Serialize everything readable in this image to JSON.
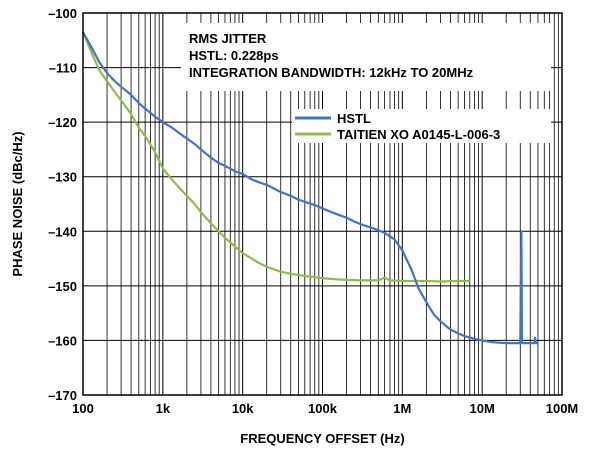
{
  "chart_data": {
    "type": "line",
    "title": "",
    "xlabel": "FREQUENCY OFFSET (Hz)",
    "ylabel": "PHASE NOISE (dBc/Hz)",
    "x_scale": "log",
    "xlim": [
      100,
      100000000
    ],
    "ylim": [
      -170,
      -100
    ],
    "x_ticks": [
      {
        "value": 100,
        "label": "100"
      },
      {
        "value": 1000,
        "label": "1k"
      },
      {
        "value": 10000,
        "label": "10k"
      },
      {
        "value": 100000,
        "label": "100k"
      },
      {
        "value": 1000000,
        "label": "1M"
      },
      {
        "value": 10000000,
        "label": "10M"
      },
      {
        "value": 100000000,
        "label": "100M"
      }
    ],
    "y_ticks": [
      {
        "value": -100,
        "label": "–100"
      },
      {
        "value": -110,
        "label": "–110"
      },
      {
        "value": -120,
        "label": "–120"
      },
      {
        "value": -130,
        "label": "–130"
      },
      {
        "value": -140,
        "label": "–140"
      },
      {
        "value": -150,
        "label": "–150"
      },
      {
        "value": -160,
        "label": "–160"
      },
      {
        "value": -170,
        "label": "–170"
      }
    ],
    "grid": true,
    "annotations": [
      "RMS JITTER",
      "HSTL: 0.228ps",
      "INTEGRATION BANDWIDTH: 12kHz TO 20MHz"
    ],
    "legend_position": "top-right",
    "series": [
      {
        "name": "HSTL",
        "color": "#4472c4",
        "points": [
          [
            100,
            -103.5
          ],
          [
            130,
            -106.5
          ],
          [
            160,
            -109
          ],
          [
            200,
            -111
          ],
          [
            250,
            -112.5
          ],
          [
            300,
            -113.5
          ],
          [
            400,
            -115
          ],
          [
            500,
            -116.5
          ],
          [
            600,
            -117.5
          ],
          [
            800,
            -119
          ],
          [
            1000,
            -120
          ],
          [
            1300,
            -121
          ],
          [
            1600,
            -122
          ],
          [
            2000,
            -123
          ],
          [
            2500,
            -124
          ],
          [
            3000,
            -125
          ],
          [
            4000,
            -126.5
          ],
          [
            5000,
            -127.5
          ],
          [
            6000,
            -128
          ],
          [
            8000,
            -129
          ],
          [
            10000,
            -129.5
          ],
          [
            13000,
            -130.5
          ],
          [
            16000,
            -131
          ],
          [
            20000,
            -131.5
          ],
          [
            25000,
            -132.2
          ],
          [
            30000,
            -132.8
          ],
          [
            40000,
            -133.5
          ],
          [
            50000,
            -134.2
          ],
          [
            60000,
            -134.6
          ],
          [
            80000,
            -135.2
          ],
          [
            100000,
            -135.8
          ],
          [
            130000,
            -136.5
          ],
          [
            160000,
            -137
          ],
          [
            200000,
            -137.5
          ],
          [
            250000,
            -138.2
          ],
          [
            300000,
            -138.7
          ],
          [
            400000,
            -139.3
          ],
          [
            500000,
            -139.8
          ],
          [
            600000,
            -140.3
          ],
          [
            800000,
            -141.5
          ],
          [
            1000000,
            -143.5
          ],
          [
            1300000,
            -147
          ],
          [
            1600000,
            -150.5
          ],
          [
            2000000,
            -153
          ],
          [
            2500000,
            -155.3
          ],
          [
            3000000,
            -156.5
          ],
          [
            4000000,
            -158
          ],
          [
            5000000,
            -158.7
          ],
          [
            6000000,
            -159.2
          ],
          [
            8000000,
            -159.7
          ],
          [
            10000000,
            -160
          ],
          [
            13000000,
            -160.3
          ],
          [
            16000000,
            -160.4
          ],
          [
            20000000,
            -160.5
          ],
          [
            25000000,
            -160.5
          ],
          [
            30000000,
            -160.5
          ],
          [
            31000000,
            -140
          ],
          [
            31500000,
            -160.5
          ],
          [
            40000000,
            -160.5
          ],
          [
            45000000,
            -160.5
          ],
          [
            46000000,
            -159.5
          ],
          [
            47000000,
            -160.5
          ],
          [
            50000000,
            -160.5
          ]
        ]
      },
      {
        "name": "TAITIEN XO A0145-L-006-3",
        "color": "#8fbc48",
        "points": [
          [
            100,
            -103.5
          ],
          [
            130,
            -107.5
          ],
          [
            160,
            -110.5
          ],
          [
            200,
            -112.5
          ],
          [
            250,
            -114.5
          ],
          [
            300,
            -116
          ],
          [
            400,
            -118.5
          ],
          [
            500,
            -121
          ],
          [
            600,
            -122.5
          ],
          [
            800,
            -125.5
          ],
          [
            1000,
            -128.5
          ],
          [
            1300,
            -130.5
          ],
          [
            1600,
            -132
          ],
          [
            2000,
            -133.5
          ],
          [
            2500,
            -135
          ],
          [
            3000,
            -136.5
          ],
          [
            4000,
            -138.5
          ],
          [
            5000,
            -140
          ],
          [
            6000,
            -141.2
          ],
          [
            8000,
            -142.8
          ],
          [
            10000,
            -144
          ],
          [
            13000,
            -145
          ],
          [
            16000,
            -145.8
          ],
          [
            20000,
            -146.5
          ],
          [
            25000,
            -147
          ],
          [
            30000,
            -147.4
          ],
          [
            40000,
            -147.8
          ],
          [
            50000,
            -148
          ],
          [
            60000,
            -148.2
          ],
          [
            80000,
            -148.4
          ],
          [
            100000,
            -148.6
          ],
          [
            150000,
            -148.8
          ],
          [
            200000,
            -148.9
          ],
          [
            300000,
            -149
          ],
          [
            500000,
            -149
          ],
          [
            600000,
            -148.5
          ],
          [
            700000,
            -149
          ],
          [
            1000000,
            -149.1
          ],
          [
            2000000,
            -149.1
          ],
          [
            3000000,
            -149.2
          ],
          [
            5000000,
            -149.1
          ],
          [
            7000000,
            -149.1
          ]
        ]
      }
    ]
  }
}
